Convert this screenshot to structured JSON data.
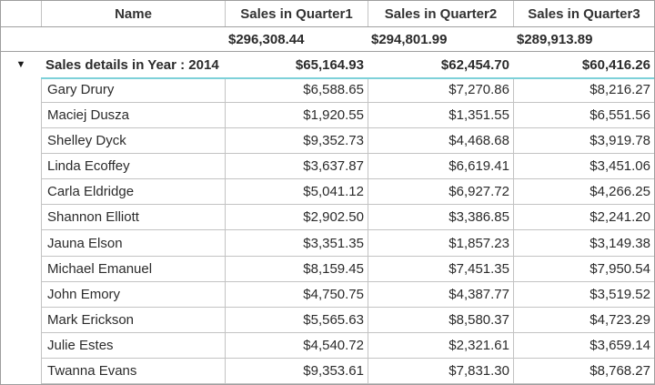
{
  "grid": {
    "columns": [
      {
        "key": "expander",
        "label": ""
      },
      {
        "key": "name",
        "label": "Name"
      },
      {
        "key": "q1",
        "label": "Sales in Quarter1"
      },
      {
        "key": "q2",
        "label": "Sales in Quarter2"
      },
      {
        "key": "q3",
        "label": "Sales in Quarter3"
      }
    ],
    "summary": {
      "q1": "$296,308.44",
      "q2": "$294,801.99",
      "q3": "$289,913.89"
    },
    "group": {
      "expander_icon": "▼",
      "state": "expanded",
      "label": "Sales details in Year : 2014",
      "q1": "$65,164.93",
      "q2": "$62,454.70",
      "q3": "$60,416.26"
    },
    "rows": [
      {
        "name": "Gary Drury",
        "q1": "$6,588.65",
        "q2": "$7,270.86",
        "q3": "$8,216.27"
      },
      {
        "name": "Maciej Dusza",
        "q1": "$1,920.55",
        "q2": "$1,351.55",
        "q3": "$6,551.56"
      },
      {
        "name": "Shelley Dyck",
        "q1": "$9,352.73",
        "q2": "$4,468.68",
        "q3": "$3,919.78"
      },
      {
        "name": "Linda Ecoffey",
        "q1": "$3,637.87",
        "q2": "$6,619.41",
        "q3": "$3,451.06"
      },
      {
        "name": "Carla Eldridge",
        "q1": "$5,041.12",
        "q2": "$6,927.72",
        "q3": "$4,266.25"
      },
      {
        "name": "Shannon Elliott",
        "q1": "$2,902.50",
        "q2": "$3,386.85",
        "q3": "$2,241.20"
      },
      {
        "name": "Jauna Elson",
        "q1": "$3,351.35",
        "q2": "$1,857.23",
        "q3": "$3,149.38"
      },
      {
        "name": "Michael Emanuel",
        "q1": "$8,159.45",
        "q2": "$7,451.35",
        "q3": "$7,950.54"
      },
      {
        "name": "John Emory",
        "q1": "$4,750.75",
        "q2": "$4,387.77",
        "q3": "$3,519.52"
      },
      {
        "name": "Mark Erickson",
        "q1": "$5,565.63",
        "q2": "$8,580.37",
        "q3": "$4,723.29"
      },
      {
        "name": "Julie Estes",
        "q1": "$4,540.72",
        "q2": "$2,321.61",
        "q3": "$3,659.14"
      },
      {
        "name": "Twanna Evans",
        "q1": "$9,353.61",
        "q2": "$7,831.30",
        "q3": "$8,768.27"
      }
    ]
  },
  "colors": {
    "accent_child_border": "#7ed1d9",
    "grid_line": "#c3c3c3",
    "strong_line": "#a0a0a0",
    "outer_border": "#9e9e9e",
    "text": "#2b2b2b"
  }
}
